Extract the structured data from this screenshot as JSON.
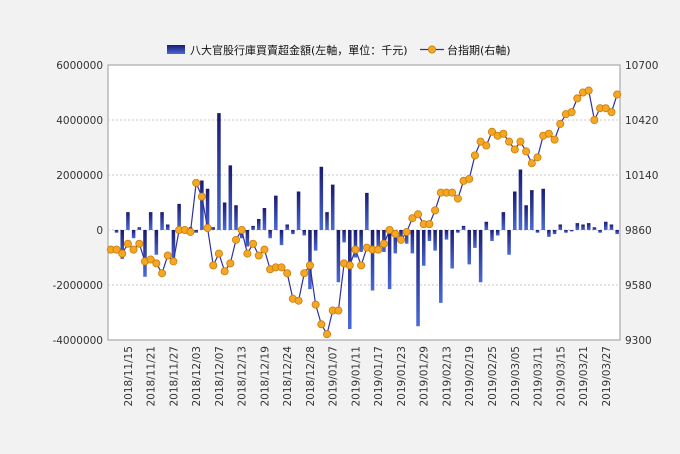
{
  "chart_data": {
    "type": "bar+line",
    "legend": {
      "position": "top-center",
      "bar_label": "八大官股行庫買賣超金額(左軸，單位：千元)",
      "line_label": "台指期(右軸)"
    },
    "y_left": {
      "ylim": [
        -4000000,
        6000000
      ],
      "ticks": [
        "-4000000",
        "-2000000",
        "0",
        "2000000",
        "4000000",
        "6000000"
      ],
      "tick_values": [
        -4000000,
        -2000000,
        0,
        2000000,
        4000000,
        6000000
      ]
    },
    "y_right": {
      "ylim": [
        9300,
        10700
      ],
      "ticks": [
        "9300",
        "9580",
        "9860",
        "10140",
        "10420",
        "10700"
      ],
      "tick_values": [
        9300,
        9580,
        9860,
        10140,
        10420,
        10700
      ]
    },
    "x_tick_labels": [
      "2018/11/15",
      "2018/11/21",
      "2018/11/27",
      "2018/12/03",
      "2018/12/07",
      "2018/12/13",
      "2018/12/19",
      "2018/12/24",
      "2018/12/28",
      "2019/01/07",
      "2019/01/11",
      "2019/01/17",
      "2019/01/23",
      "2019/01/29",
      "2019/02/13",
      "2019/02/19",
      "2019/02/25",
      "2019/03/05",
      "2019/03/11",
      "2019/03/15",
      "2019/03/21",
      "2019/03/27"
    ],
    "grid": true,
    "colors": {
      "bar_top": "#1a1a70",
      "bar_bottom": "#4a6ad8",
      "line": "#3030a0",
      "marker": "#f5a623",
      "marker_edge": "#c77d0a"
    },
    "series": [
      {
        "name": "八大官股行庫買賣超金額(左軸，單位：千元)",
        "type": "bar",
        "values": [
          -100000,
          -1050000,
          650000,
          -300000,
          100000,
          -1700000,
          650000,
          -900000,
          650000,
          200000,
          -1100000,
          950000,
          -50000,
          100000,
          -100000,
          1800000,
          1500000,
          100000,
          4250000,
          1000000,
          2350000,
          900000,
          -300000,
          -600000,
          150000,
          400000,
          800000,
          -300000,
          1250000,
          -550000,
          200000,
          -150000,
          1400000,
          -200000,
          -2150000,
          -750000,
          2300000,
          650000,
          1650000,
          -1900000,
          -450000,
          -3600000,
          -1000000,
          -800000,
          1350000,
          -2200000,
          -650000,
          -800000,
          -2150000,
          -850000,
          -350000,
          -500000,
          -850000,
          -3500000,
          -1300000,
          -400000,
          -750000,
          -2650000,
          -350000,
          -1400000,
          -100000,
          150000,
          -1250000,
          -650000,
          -1900000,
          300000,
          -400000,
          -200000,
          650000,
          -900000,
          1400000,
          2200000,
          900000,
          1450000,
          -100000,
          1500000,
          -250000,
          -150000,
          200000,
          -100000,
          -50000,
          250000,
          200000,
          250000,
          100000,
          -100000,
          300000,
          200000,
          -150000
        ],
        "dates": [
          "2018/11/13",
          "2018/11/14",
          "2018/11/15",
          "2018/11/16",
          "2018/11/19",
          "2018/11/20",
          "2018/11/21",
          "2018/11/22",
          "2018/11/23",
          "2018/11/26",
          "2018/11/27",
          "2018/11/28",
          "2018/11/29",
          "2018/11/30",
          "2018/12/03",
          "2018/12/04",
          "2018/12/05",
          "2018/12/06",
          "2018/12/07",
          "2018/12/10",
          "2018/12/11",
          "2018/12/12",
          "2018/12/13",
          "2018/12/14",
          "2018/12/17",
          "2018/12/18",
          "2018/12/19",
          "2018/12/20",
          "2018/12/21",
          "2018/12/22",
          "2018/12/24",
          "2018/12/25",
          "2018/12/26",
          "2018/12/27",
          "2018/12/28",
          "2019/01/02",
          "2019/01/03",
          "2019/01/04",
          "2019/01/07",
          "2019/01/08",
          "2019/01/09",
          "2019/01/10",
          "2019/01/11",
          "2019/01/14",
          "2019/01/15",
          "2019/01/16",
          "2019/01/17",
          "2019/01/18",
          "2019/01/21",
          "2019/01/22",
          "2019/01/23",
          "2019/01/24",
          "2019/01/25",
          "2019/01/28",
          "2019/01/29",
          "2019/01/30",
          "2019/02/11",
          "2019/02/12",
          "2019/02/13",
          "2019/02/14",
          "2019/02/15",
          "2019/02/18",
          "2019/02/19",
          "2019/02/20",
          "2019/02/21",
          "2019/02/22",
          "2019/02/25",
          "2019/02/26",
          "2019/02/27",
          "2019/03/04",
          "2019/03/05",
          "2019/03/06",
          "2019/03/07",
          "2019/03/08",
          "2019/03/11",
          "2019/03/12",
          "2019/03/13",
          "2019/03/14",
          "2019/03/15",
          "2019/03/18",
          "2019/03/19",
          "2019/03/20",
          "2019/03/21",
          "2019/03/22",
          "2019/03/25",
          "2019/03/26",
          "2019/03/27",
          "2019/03/28",
          "2019/03/29"
        ]
      },
      {
        "name": "台指期(右軸)",
        "type": "line",
        "axis": "right",
        "values": [
          9760,
          9760,
          9740,
          9790,
          9760,
          9790,
          9700,
          9710,
          9690,
          9640,
          9730,
          9700,
          9860,
          9860,
          9850,
          10100,
          10030,
          9870,
          9680,
          9740,
          9650,
          9690,
          9810,
          9860,
          9740,
          9790,
          9730,
          9760,
          9660,
          9670,
          9670,
          9640,
          9510,
          9500,
          9640,
          9680,
          9480,
          9380,
          9330,
          9450,
          9450,
          9690,
          9680,
          9760,
          9680,
          9770,
          9760,
          9760,
          9790,
          9860,
          9840,
          9810,
          9850,
          9920,
          9940,
          9890,
          9890,
          9960,
          10050,
          10050,
          10050,
          10020,
          10110,
          10120,
          10240,
          10310,
          10290,
          10360,
          10340,
          10350,
          10310,
          10270,
          10310,
          10260,
          10200,
          10230,
          10340,
          10350,
          10320,
          10400,
          10450,
          10460,
          10530,
          10560,
          10570,
          10420,
          10480,
          10480,
          10460,
          10550
        ],
        "dates": [
          "2018/11/12",
          "2018/11/13",
          "2018/11/14",
          "2018/11/15",
          "2018/11/16",
          "2018/11/19",
          "2018/11/20",
          "2018/11/21",
          "2018/11/22",
          "2018/11/23",
          "2018/11/26",
          "2018/11/27",
          "2018/11/28",
          "2018/11/29",
          "2018/11/30",
          "2018/12/03",
          "2018/12/04",
          "2018/12/05",
          "2018/12/06",
          "2018/12/07",
          "2018/12/10",
          "2018/12/11",
          "2018/12/12",
          "2018/12/13",
          "2018/12/14",
          "2018/12/17",
          "2018/12/18",
          "2018/12/19",
          "2018/12/20",
          "2018/12/21",
          "2018/12/22",
          "2018/12/24",
          "2018/12/25",
          "2018/12/26",
          "2018/12/27",
          "2018/12/28",
          "2019/01/02",
          "2019/01/03",
          "2019/01/04",
          "2019/01/07",
          "2019/01/08",
          "2019/01/09",
          "2019/01/10",
          "2019/01/11",
          "2019/01/14",
          "2019/01/15",
          "2019/01/16",
          "2019/01/17",
          "2019/01/18",
          "2019/01/21",
          "2019/01/22",
          "2019/01/23",
          "2019/01/24",
          "2019/01/25",
          "2019/01/28",
          "2019/01/29",
          "2019/01/30",
          "2019/02/11",
          "2019/02/12",
          "2019/02/13",
          "2019/02/14",
          "2019/02/15",
          "2019/02/18",
          "2019/02/19",
          "2019/02/20",
          "2019/02/21",
          "2019/02/22",
          "2019/02/25",
          "2019/02/26",
          "2019/02/27",
          "2019/03/04",
          "2019/03/05",
          "2019/03/06",
          "2019/03/07",
          "2019/03/08",
          "2019/03/11",
          "2019/03/12",
          "2019/03/13",
          "2019/03/14",
          "2019/03/15",
          "2019/03/18",
          "2019/03/19",
          "2019/03/20",
          "2019/03/21",
          "2019/03/22",
          "2019/03/25",
          "2019/03/26",
          "2019/03/27",
          "2019/03/28",
          "2019/03/29"
        ]
      }
    ]
  }
}
